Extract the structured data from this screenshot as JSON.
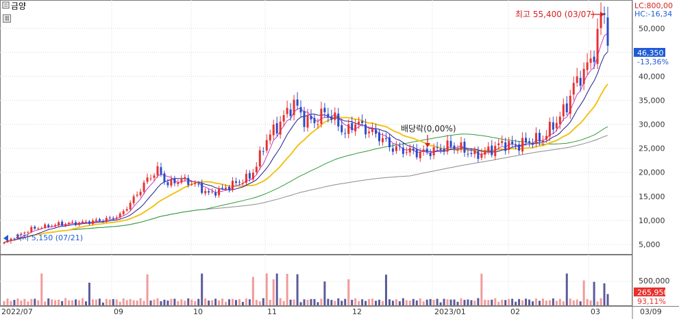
{
  "header": {
    "stock_name": "금양",
    "lc_text": "LC:800,00",
    "hc_text": "HC:-16,34"
  },
  "colors": {
    "up": "#e8312f",
    "down": "#2a4bc8",
    "ma5": "#c038c8",
    "ma10": "#1a1a8c",
    "ma20": "#f2c21a",
    "ma60": "#2f9a3a",
    "ma120": "#8a8a8a",
    "vol_up": "#f29a9a",
    "vol_down": "#5a5a9a",
    "price_tag": "#1f5bd6"
  },
  "annotations": {
    "high_label": "최고 55,400 (03/07)",
    "low_label": "최저 5,150 (07/21)",
    "dividend_label": "배당락(0,00%)"
  },
  "chart_data": {
    "type": "candlestick",
    "price_axis": {
      "ticks": [
        5000,
        10000,
        15000,
        20000,
        25000,
        30000,
        35000,
        40000,
        45000,
        50000
      ],
      "tick_labels": [
        "5,000",
        "10,000",
        "15,000",
        "20,000",
        "25,000",
        "30,000",
        "35,000",
        "40,000",
        "45,000",
        "50,000"
      ],
      "range": [
        3000,
        55600
      ]
    },
    "volume_axis": {
      "ticks": [
        500000
      ],
      "tick_labels": [
        "500,000"
      ]
    },
    "x_axis": {
      "labels": [
        "2022/07",
        "09",
        "10",
        "11",
        "12",
        "2023/01",
        "02",
        "03",
        "03/09"
      ]
    },
    "current": {
      "price_label": "46,350",
      "change_label": "-13,36%",
      "volume_label": "265,950",
      "volume_change_label": "93,11%"
    },
    "high": 55400,
    "low": 5150,
    "keypoints": [
      [
        0,
        5400
      ],
      [
        8,
        8200
      ],
      [
        16,
        9200
      ],
      [
        24,
        9600
      ],
      [
        30,
        10200
      ],
      [
        34,
        11000
      ],
      [
        38,
        14500
      ],
      [
        42,
        18500
      ],
      [
        45,
        20500
      ],
      [
        48,
        17500
      ],
      [
        52,
        18500
      ],
      [
        56,
        17500
      ],
      [
        60,
        15500
      ],
      [
        64,
        16500
      ],
      [
        68,
        17800
      ],
      [
        72,
        19000
      ],
      [
        74,
        21500
      ],
      [
        77,
        27000
      ],
      [
        80,
        29500
      ],
      [
        83,
        32500
      ],
      [
        85,
        34500
      ],
      [
        88,
        31000
      ],
      [
        91,
        30500
      ],
      [
        94,
        32500
      ],
      [
        97,
        31000
      ],
      [
        100,
        28000
      ],
      [
        103,
        30500
      ],
      [
        106,
        29000
      ],
      [
        110,
        27500
      ],
      [
        114,
        25000
      ],
      [
        118,
        24500
      ],
      [
        122,
        24000
      ],
      [
        126,
        24500
      ],
      [
        130,
        25500
      ],
      [
        134,
        25000
      ],
      [
        138,
        23500
      ],
      [
        142,
        24500
      ],
      [
        146,
        26000
      ],
      [
        150,
        25500
      ],
      [
        154,
        26500
      ],
      [
        158,
        27000
      ],
      [
        160,
        29000
      ],
      [
        163,
        31500
      ],
      [
        165,
        34000
      ],
      [
        167,
        38000
      ],
      [
        169,
        40000
      ],
      [
        171,
        42000
      ],
      [
        173,
        45000
      ],
      [
        175,
        52000
      ],
      [
        176,
        53500
      ],
      [
        177,
        46350
      ]
    ]
  }
}
